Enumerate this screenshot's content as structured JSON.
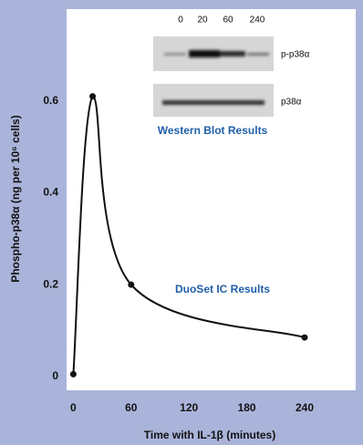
{
  "chart_data": {
    "type": "line",
    "x": [
      0,
      20,
      60,
      240
    ],
    "series": [
      {
        "values": [
          0.005,
          0.61,
          0.2,
          0.085
        ],
        "color": "#111111"
      }
    ],
    "xlim": [
      -7,
      293
    ],
    "ylim": [
      -0.03,
      0.8
    ],
    "xticks": [
      0,
      60,
      120,
      180,
      240
    ],
    "yticks": [
      0,
      0.2,
      0.4,
      0.6
    ],
    "x_label": "Time with IL-1β (minutes)",
    "y_label": "Phospho-p38α (ng per 10⁶ cells)",
    "curve_label": "DuoSet IC Results",
    "inset": {
      "title": "Western Blot Results",
      "lanes": [
        "0",
        "20",
        "60",
        "240"
      ],
      "rows": [
        "p-p38α",
        "p38α"
      ]
    }
  }
}
